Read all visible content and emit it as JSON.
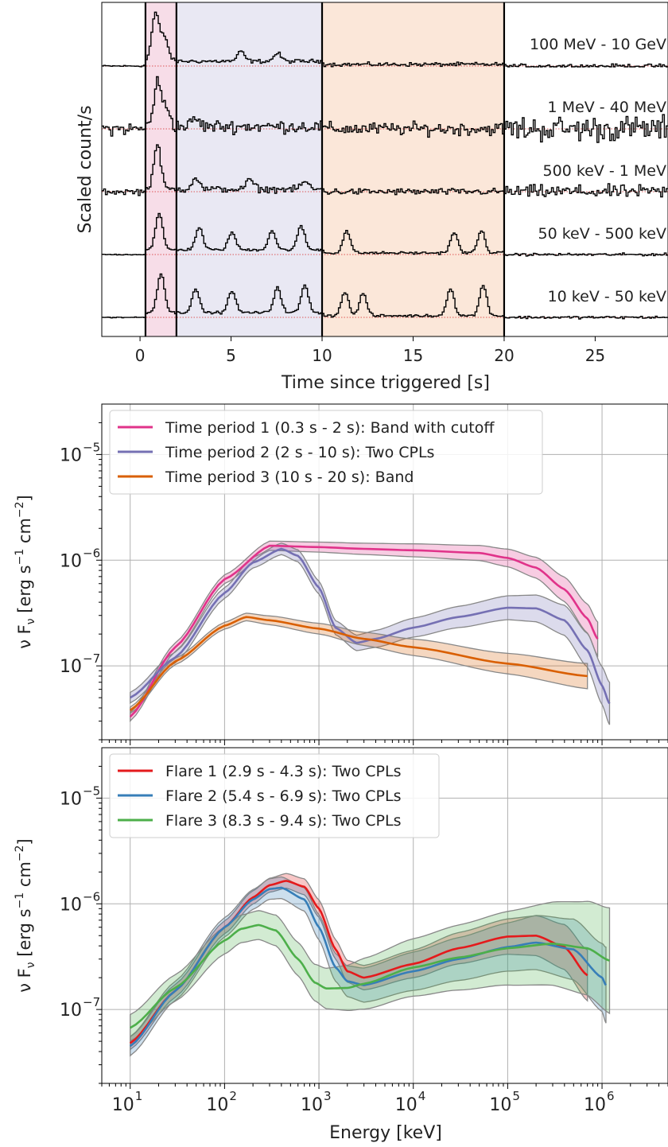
{
  "chart_data": [
    {
      "type": "line",
      "xlabel": "Time since triggered [s]",
      "ylabel": "Scaled count/s",
      "xlim": [
        -2.1,
        29
      ],
      "xticks": [
        0,
        5,
        10,
        15,
        20,
        25
      ],
      "time_periods": [
        {
          "start": 0.3,
          "end": 2,
          "color": "#f7dde8"
        },
        {
          "start": 2,
          "end": 10,
          "color": "#e9e8f3"
        },
        {
          "start": 10,
          "end": 20,
          "color": "#fbe7d9"
        }
      ],
      "boundaries": [
        0.3,
        2,
        10,
        20
      ],
      "grid": false,
      "legend": "none",
      "series": [
        {
          "name": "100 MeV - 10 GeV",
          "color": "#000000",
          "baseline": 0,
          "peaks": [
            [
              0.8,
              60
            ],
            [
              1.3,
              30
            ],
            [
              5.5,
              12
            ],
            [
              7.5,
              10
            ]
          ],
          "noise": 6,
          "floor": true
        },
        {
          "name": "1 MeV - 40 MeV",
          "color": "#000000",
          "baseline": 0,
          "peaks": [
            [
              0.9,
              55
            ],
            [
              1.4,
              25
            ],
            [
              3.0,
              10
            ]
          ],
          "noise": 20,
          "floor": false
        },
        {
          "name": "500 keV - 1 MeV",
          "color": "#000000",
          "baseline": 0,
          "peaks": [
            [
              0.9,
              55
            ],
            [
              3.0,
              15
            ],
            [
              6.0,
              12
            ],
            [
              9.0,
              10
            ]
          ],
          "noise": 10,
          "floor": false
        },
        {
          "name": "50 keV - 500 keV",
          "color": "#000000",
          "baseline": 0,
          "peaks": [
            [
              1.0,
              45
            ],
            [
              3.2,
              28
            ],
            [
              5.0,
              22
            ],
            [
              7.2,
              24
            ],
            [
              8.8,
              30
            ],
            [
              11.3,
              28
            ],
            [
              17.2,
              26
            ],
            [
              18.7,
              28
            ]
          ],
          "noise": 4,
          "floor": true
        },
        {
          "name": "10 keV - 50 keV",
          "color": "#000000",
          "baseline": 0,
          "peaks": [
            [
              1.1,
              50
            ],
            [
              3.0,
              30
            ],
            [
              5.0,
              28
            ],
            [
              7.5,
              32
            ],
            [
              9.0,
              34
            ],
            [
              11.2,
              30
            ],
            [
              12.2,
              28
            ],
            [
              17.0,
              35
            ],
            [
              18.8,
              38
            ]
          ],
          "noise": 4,
          "floor": true
        }
      ]
    },
    {
      "type": "line",
      "xscale": "log",
      "yscale": "log",
      "xlim": [
        5,
        5000000
      ],
      "ylim": [
        2e-08,
        3e-05
      ],
      "ylabel": "ν F_ν [erg s⁻¹ cm⁻²]",
      "ylabel_parts": [
        "ν  F",
        "ν",
        " [erg s",
        "−1",
        " cm",
        "−2",
        "]"
      ],
      "yticks": [
        {
          "value": 1e-05,
          "label": "10",
          "exp": "−5"
        },
        {
          "value": 1e-06,
          "label": "10",
          "exp": "−6"
        },
        {
          "value": 1e-07,
          "label": "10",
          "exp": "−7"
        }
      ],
      "grid": true,
      "legend": "upper-left",
      "series": [
        {
          "name": "Time period 1 (0.3 s - 2 s): Band with cutoff",
          "color": "#e0338a",
          "x": [
            10,
            30,
            100,
            300,
            1000,
            3000,
            10000,
            50000,
            100000,
            200000,
            400000,
            700000,
            900000
          ],
          "y": [
            3.3e-08,
            1.5e-07,
            6.6e-07,
            1.37e-06,
            1.33e-06,
            1.28e-06,
            1.24e-06,
            1.17e-06,
            1.05e-06,
            8.5e-07,
            5.3e-07,
            2.8e-07,
            1.8e-07
          ],
          "band": 0.08
        },
        {
          "name": "Time period 2 (2 s - 10 s): Two CPLs",
          "color": "#7570b3",
          "x": [
            10,
            30,
            100,
            200,
            400,
            600,
            1000,
            1500,
            2500,
            4000,
            10000,
            30000,
            100000,
            200000,
            400000,
            700000,
            1000000,
            1200000
          ],
          "y": [
            5e-08,
            1.2e-07,
            4.9e-07,
            9.5e-07,
            1.28e-06,
            1.1e-06,
            5.5e-07,
            2.3e-07,
            1.65e-07,
            1.8e-07,
            2.3e-07,
            2.9e-07,
            3.55e-07,
            3.5e-07,
            2.7e-07,
            1.4e-07,
            6.5e-08,
            4.4e-08
          ],
          "band": 0.1
        },
        {
          "name": "Time period 3 (10 s - 20 s): Band",
          "color": "#d95f02",
          "x": [
            10,
            30,
            100,
            170,
            300,
            1000,
            3000,
            10000,
            100000,
            700000
          ],
          "y": [
            3.8e-08,
            1.1e-07,
            2.4e-07,
            2.9e-07,
            2.7e-07,
            2.25e-07,
            1.8e-07,
            1.5e-07,
            1.05e-07,
            8e-08
          ],
          "band": 0.06
        }
      ]
    },
    {
      "type": "line",
      "xscale": "log",
      "yscale": "log",
      "xlim": [
        5,
        5000000
      ],
      "ylim": [
        2e-08,
        3e-05
      ],
      "xlabel": "Energy [keV]",
      "ylabel": "ν F_ν [erg s⁻¹ cm⁻²]",
      "ylabel_parts": [
        "ν  F",
        "ν",
        " [erg s",
        "−1",
        " cm",
        "−2",
        "]"
      ],
      "xticks": [
        {
          "value": 10,
          "label": "10",
          "exp": "1"
        },
        {
          "value": 100,
          "label": "10",
          "exp": "2"
        },
        {
          "value": 1000,
          "label": "10",
          "exp": "3"
        },
        {
          "value": 10000,
          "label": "10",
          "exp": "4"
        },
        {
          "value": 100000,
          "label": "10",
          "exp": "5"
        },
        {
          "value": 1000000,
          "label": "10",
          "exp": "6"
        }
      ],
      "yticks": [
        {
          "value": 1e-05,
          "label": "10",
          "exp": "−5"
        },
        {
          "value": 1e-06,
          "label": "10",
          "exp": "−6"
        },
        {
          "value": 1e-07,
          "label": "10",
          "exp": "−7"
        }
      ],
      "grid": true,
      "legend": "upper-left",
      "series": [
        {
          "name": "Flare 1 (2.9 s - 4.3 s): Two CPLs",
          "color": "#e41a1c",
          "x": [
            10,
            30,
            100,
            200,
            300,
            450,
            700,
            1000,
            1500,
            2000,
            3000,
            10000,
            30000,
            100000,
            200000,
            400000,
            700000
          ],
          "y": [
            4.8e-08,
            1.5e-07,
            6e-07,
            1.15e-06,
            1.5e-06,
            1.65e-06,
            1.45e-06,
            9e-07,
            3.7e-07,
            2.3e-07,
            2e-07,
            2.7e-07,
            3.8e-07,
            4.9e-07,
            5e-07,
            3.9e-07,
            2.1e-07
          ],
          "band": 0.12
        },
        {
          "name": "Flare 2 (5.4 s - 6.9 s): Two CPLs",
          "color": "#377eb8",
          "x": [
            10,
            30,
            100,
            200,
            300,
            400,
            700,
            1000,
            1500,
            2000,
            3000,
            10000,
            30000,
            100000,
            200000,
            500000,
            1000000,
            1100000
          ],
          "y": [
            4.5e-08,
            1.5e-07,
            6e-07,
            1.1e-06,
            1.38e-06,
            1.42e-06,
            1.1e-06,
            6e-07,
            2.5e-07,
            1.85e-07,
            1.7e-07,
            2.3e-07,
            3e-07,
            3.9e-07,
            4.3e-07,
            3.7e-07,
            2e-07,
            1.7e-07
          ],
          "band": 0.18
        },
        {
          "name": "Flare 3 (8.3 s - 9.4 s): Two CPLs",
          "color": "#4daf4a",
          "x": [
            10,
            30,
            100,
            150,
            230,
            350,
            600,
            900,
            1200,
            2000,
            3000,
            10000,
            30000,
            100000,
            300000,
            700000,
            1200000
          ],
          "y": [
            6.7e-08,
            1.6e-07,
            4.5e-07,
            5.8e-07,
            6.3e-07,
            5.6e-07,
            3e-07,
            1.8e-07,
            1.58e-07,
            1.6e-07,
            1.75e-07,
            2.5e-07,
            3.1e-07,
            3.8e-07,
            4.2e-07,
            3.8e-07,
            2.9e-07
          ],
          "band": 0.25
        }
      ]
    }
  ]
}
